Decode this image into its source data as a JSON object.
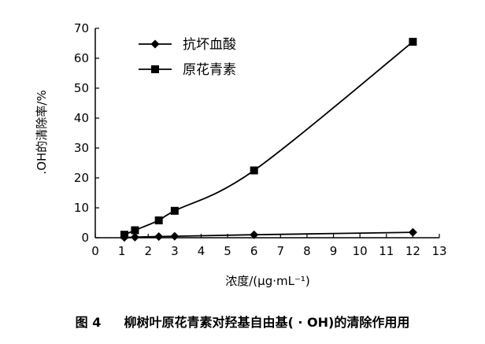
{
  "chart_data": {
    "type": "line",
    "xlabel": "浓度/(μg·mL⁻¹)",
    "ylabel": ".OH的清除率/%",
    "xlim": [
      0,
      13
    ],
    "ylim": [
      0,
      70
    ],
    "x_ticks": [
      0,
      1,
      2,
      3,
      4,
      5,
      6,
      7,
      8,
      9,
      10,
      11,
      12,
      13
    ],
    "y_ticks": [
      0,
      10,
      20,
      30,
      40,
      50,
      60,
      70
    ],
    "grid": false,
    "legend_position": "top-left",
    "series": [
      {
        "name": "抗坏血酸",
        "marker": "diamond",
        "color": "#000000",
        "points": [
          {
            "x": 1.1,
            "y": 0.1
          },
          {
            "x": 1.5,
            "y": 0.2
          },
          {
            "x": 2.4,
            "y": 0.4
          },
          {
            "x": 3.0,
            "y": 0.5
          },
          {
            "x": 6.0,
            "y": 1.0
          },
          {
            "x": 12.0,
            "y": 1.8
          }
        ]
      },
      {
        "name": "原花青素",
        "marker": "square",
        "color": "#000000",
        "points": [
          {
            "x": 1.1,
            "y": 1.0
          },
          {
            "x": 1.5,
            "y": 2.5
          },
          {
            "x": 2.4,
            "y": 5.8
          },
          {
            "x": 3.0,
            "y": 9.0
          },
          {
            "x": 6.0,
            "y": 22.5
          },
          {
            "x": 12.0,
            "y": 65.5
          }
        ]
      }
    ]
  },
  "caption": {
    "figure_label": "图 4",
    "text": "柳树叶原花青素对羟基自由基( · OH)的清除作用用"
  }
}
